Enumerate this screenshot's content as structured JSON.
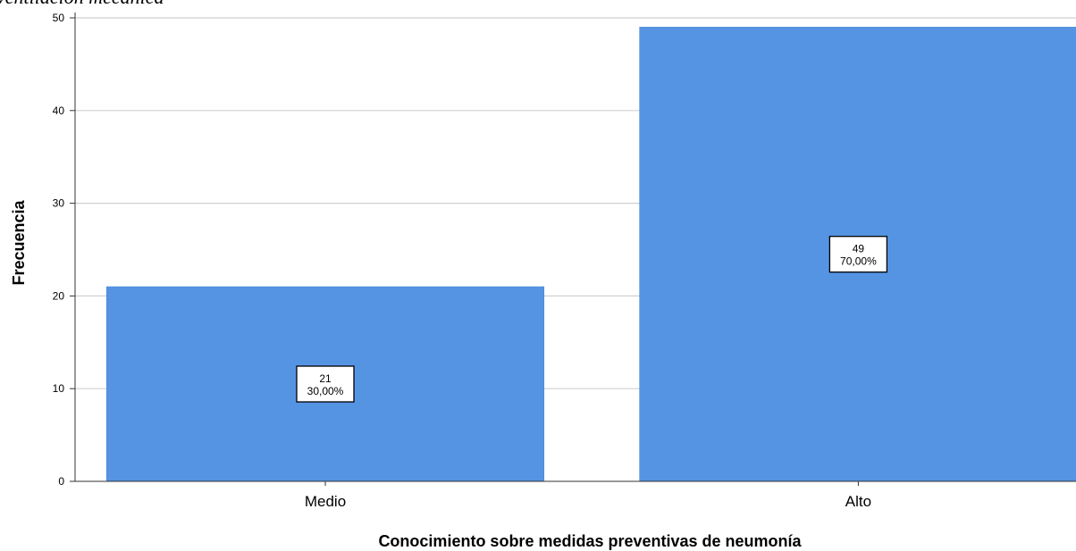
{
  "header": {
    "partial_title": "ventilación mecánica"
  },
  "chart_data": {
    "type": "bar",
    "categories": [
      "Medio",
      "Alto"
    ],
    "values": [
      21,
      49
    ],
    "percent_labels": [
      "30,00%",
      "70,00%"
    ],
    "count_labels": [
      "21",
      "49"
    ],
    "title": "",
    "xlabel": "Conocimiento sobre medidas preventivas de neumonía",
    "ylabel": "Frecuencia",
    "ylim": [
      0,
      50
    ],
    "yticks": [
      0,
      10,
      20,
      30,
      40,
      50
    ],
    "ytick_labels": [
      "0",
      "10",
      "20",
      "30",
      "40",
      "50"
    ],
    "grid": true,
    "legend": "none",
    "bar_color": "#5594e3"
  }
}
